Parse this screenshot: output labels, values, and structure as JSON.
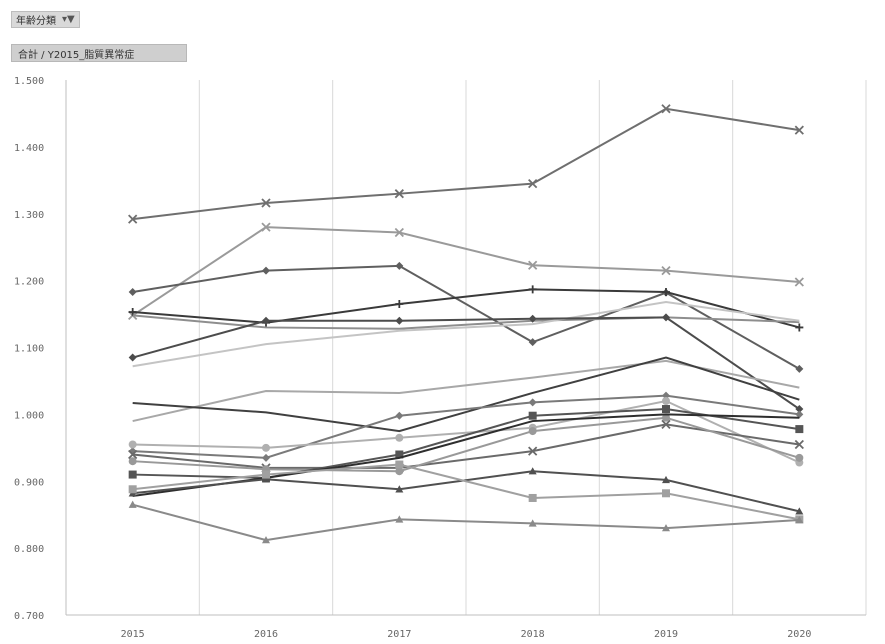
{
  "filter_button": {
    "label": "年齢分類",
    "icon": "filter-icon"
  },
  "value_field_button": {
    "label": "合計 / Y2015_脂質異常症"
  },
  "chart_data": {
    "type": "line",
    "title": "",
    "xlabel": "",
    "ylabel": "",
    "x": [
      "2015",
      "2016",
      "2017",
      "2018",
      "2019",
      "2020"
    ],
    "ylim": [
      0.7,
      1.5
    ],
    "y_ticks": [
      "0.700",
      "0.800",
      "0.900",
      "1.000",
      "1.100",
      "1.200",
      "1.300",
      "1.400",
      "1.500"
    ],
    "grid": "vertical",
    "legend": "none",
    "series": [
      {
        "color": "#6f6f6f",
        "marker": "x",
        "values": [
          1.292,
          1.316,
          1.33,
          1.345,
          1.457,
          1.425
        ]
      },
      {
        "color": "#9a9a9a",
        "marker": "x",
        "values": [
          1.148,
          1.28,
          1.272,
          1.223,
          1.215,
          1.198
        ]
      },
      {
        "color": "#5f5f5f",
        "marker": "diamond",
        "values": [
          1.183,
          1.215,
          1.222,
          1.108,
          1.182,
          1.068
        ]
      },
      {
        "color": "#3a3a3a",
        "marker": "plus",
        "values": [
          1.153,
          1.137,
          1.165,
          1.187,
          1.183,
          1.13
        ]
      },
      {
        "color": "#8e8e8e",
        "marker": "none",
        "values": [
          1.148,
          1.13,
          1.128,
          1.14,
          1.145,
          1.138
        ]
      },
      {
        "color": "#c4c4c4",
        "marker": "none",
        "values": [
          1.072,
          1.105,
          1.125,
          1.135,
          1.168,
          1.14
        ]
      },
      {
        "color": "#4c4c4c",
        "marker": "diamond",
        "values": [
          1.085,
          1.14,
          1.14,
          1.143,
          1.145,
          1.008
        ]
      },
      {
        "color": "#a8a8a8",
        "marker": "none",
        "values": [
          0.99,
          1.035,
          1.032,
          1.055,
          1.08,
          1.04
        ]
      },
      {
        "color": "#404040",
        "marker": "none",
        "values": [
          1.017,
          1.003,
          0.975,
          1.032,
          1.085,
          1.022
        ]
      },
      {
        "color": "#7a7a7a",
        "marker": "diamond",
        "values": [
          0.945,
          0.935,
          0.998,
          1.018,
          1.028,
          1.0
        ]
      },
      {
        "color": "#b0b0b0",
        "marker": "circle",
        "values": [
          0.955,
          0.95,
          0.965,
          0.98,
          1.02,
          0.928
        ]
      },
      {
        "color": "#6a6a6a",
        "marker": "x",
        "values": [
          0.94,
          0.92,
          0.92,
          0.945,
          0.985,
          0.955
        ]
      },
      {
        "color": "#999999",
        "marker": "circle",
        "values": [
          0.93,
          0.918,
          0.915,
          0.975,
          0.995,
          0.935
        ]
      },
      {
        "color": "#555555",
        "marker": "square",
        "values": [
          0.91,
          0.905,
          0.94,
          0.998,
          1.008,
          0.978
        ]
      },
      {
        "color": "#2e2e2e",
        "marker": "none",
        "values": [
          0.878,
          0.905,
          0.935,
          0.99,
          1.0,
          0.995
        ]
      },
      {
        "color": "#505050",
        "marker": "triangle",
        "values": [
          0.882,
          0.903,
          0.888,
          0.915,
          0.902,
          0.855
        ]
      },
      {
        "color": "#a0a0a0",
        "marker": "square",
        "values": [
          0.888,
          0.91,
          0.925,
          0.875,
          0.882,
          0.843
        ]
      },
      {
        "color": "#8a8a8a",
        "marker": "triangle",
        "values": [
          0.865,
          0.812,
          0.843,
          0.837,
          0.83,
          0.842
        ]
      }
    ]
  }
}
